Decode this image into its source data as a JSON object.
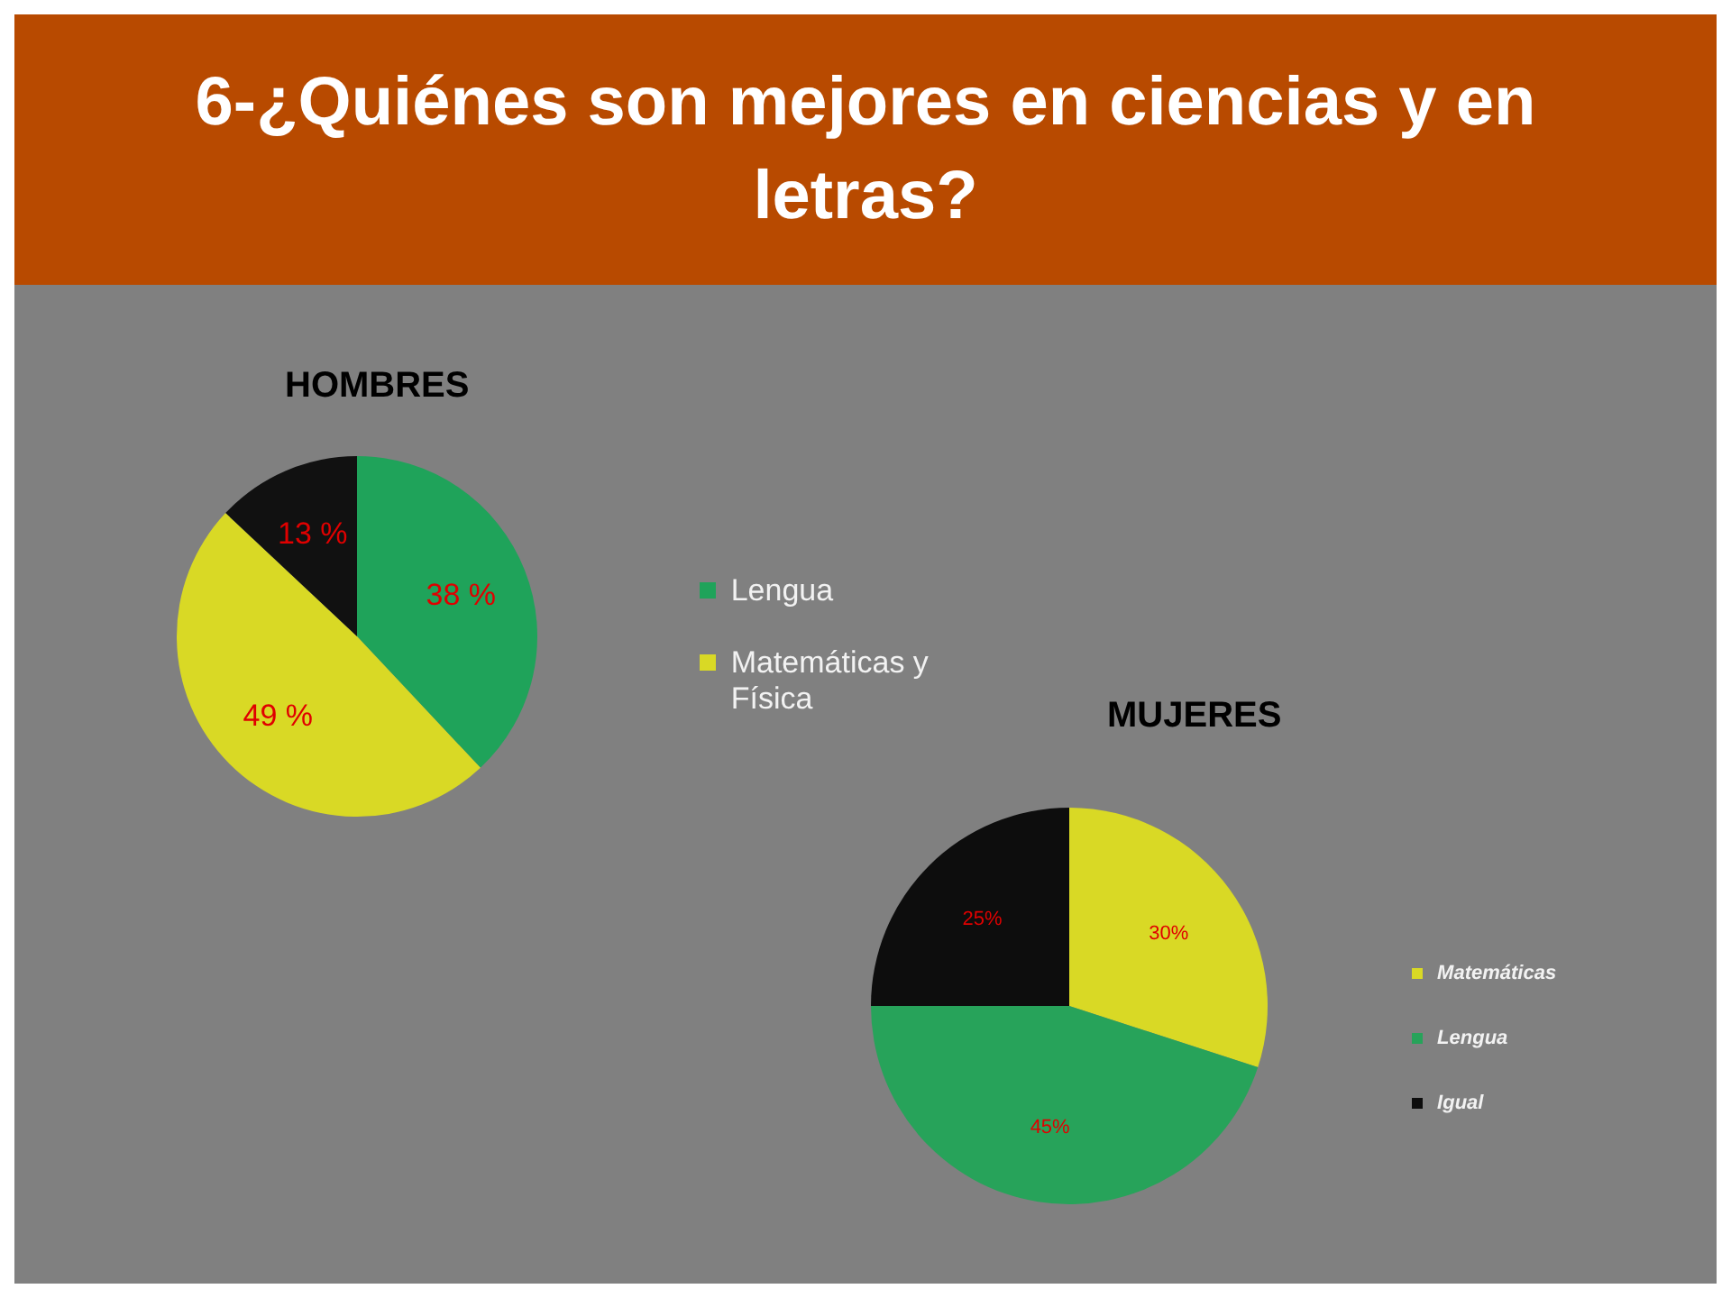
{
  "chart_data": [
    {
      "type": "pie",
      "title": "6-¿Quiénes son mejores en ciencias y en letras?",
      "subtitle": "HOMBRES",
      "categories": [
        "Lengua",
        "Matemáticas y Física",
        null
      ],
      "values": [
        38,
        49,
        13
      ],
      "colors": [
        "#1fa35a",
        "#d9d925",
        "#111111"
      ],
      "value_labels": [
        "38 %",
        "49 %",
        "13 %"
      ],
      "legend": "right"
    },
    {
      "type": "pie",
      "title": "MUJERES",
      "categories": [
        "Matemáticas",
        "Lengua",
        "Igual"
      ],
      "values": [
        30,
        45,
        25
      ],
      "colors": [
        "#d9d925",
        "#27a35a",
        "#0d0d0d"
      ],
      "value_labels": [
        "30%",
        "45%",
        "25%"
      ],
      "legend": "right"
    }
  ]
}
